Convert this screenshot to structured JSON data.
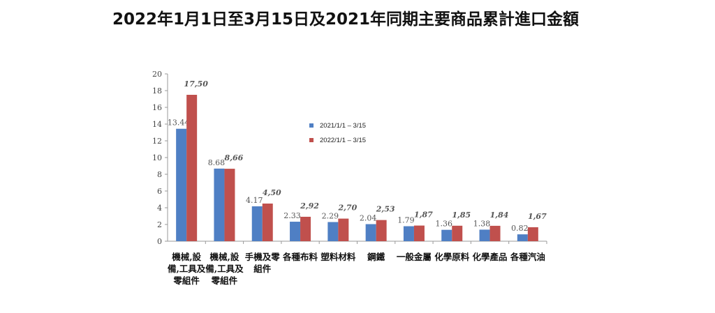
{
  "chart_data": {
    "type": "bar",
    "title": "2022年1月1日至3月15日及2021年同期主要商品累計進口金額",
    "xlabel": "",
    "ylabel": "",
    "ylim": [
      0,
      20
    ],
    "yticks": [
      "0",
      "2",
      "4",
      "6",
      "8",
      "10",
      "12",
      "14",
      "16",
      "18",
      "20"
    ],
    "grid": false,
    "legend_position": "upper-center",
    "categories": [
      "機械,設備,工具及零組件",
      "機械,設備,工具及零組件",
      "手機及零組件",
      "各種布料",
      "塑料材料",
      "鋼鐵",
      "一般金屬",
      "化學原料",
      "化學產品",
      "各種汽油"
    ],
    "series": [
      {
        "name": "2021/1/1 – 3/15",
        "color": "#4f7fc4",
        "values": [
          13.44,
          8.68,
          4.17,
          2.33,
          2.29,
          2.04,
          1.79,
          1.36,
          1.38,
          0.82
        ],
        "labels": [
          "13.44",
          "8.68",
          "4.17",
          "2.33",
          "2.29",
          "2.04",
          "1.79",
          "1.36",
          "1.38",
          "0.82"
        ]
      },
      {
        "name": "2022/1/1 – 3/15",
        "color": "#c0504d",
        "values": [
          17.5,
          8.66,
          4.5,
          2.92,
          2.7,
          2.53,
          1.87,
          1.85,
          1.84,
          1.67
        ],
        "labels": [
          "17,50",
          "8,66",
          "4,50",
          "2,92",
          "2,70",
          "2,53",
          "1,87",
          "1,85",
          "1,84",
          "1,67"
        ]
      }
    ]
  }
}
